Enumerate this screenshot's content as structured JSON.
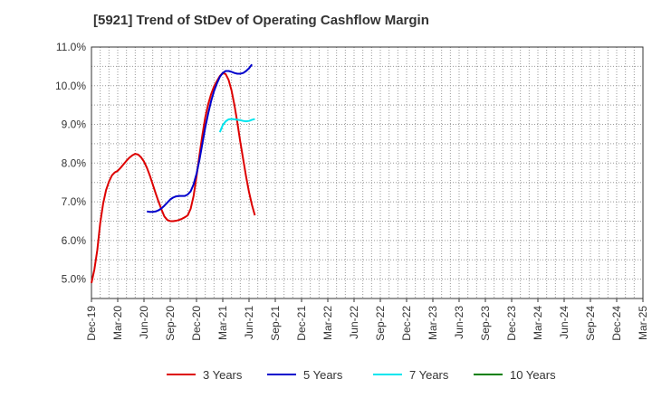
{
  "chart_data": {
    "type": "line",
    "title": "[5921]  Trend of StDev of Operating Cashflow Margin",
    "xlabel": "",
    "ylabel": "",
    "x_tick_labels": [
      "Dec-19",
      "Mar-20",
      "Jun-20",
      "Sep-20",
      "Dec-20",
      "Mar-21",
      "Jun-21",
      "Sep-21",
      "Dec-21",
      "Mar-22",
      "Jun-22",
      "Sep-22",
      "Dec-22",
      "Mar-23",
      "Jun-23",
      "Sep-23",
      "Dec-23",
      "Mar-24",
      "Jun-24",
      "Sep-24",
      "Dec-24",
      "Mar-25"
    ],
    "y_tick_labels": [
      "5.0%",
      "6.0%",
      "7.0%",
      "8.0%",
      "9.0%",
      "10.0%",
      "11.0%"
    ],
    "ylim": [
      4.5,
      11.0
    ],
    "grid": true,
    "legend_position": "bottom",
    "series": [
      {
        "name": "3 Years",
        "color": "#dd0000",
        "points": [
          [
            0,
            4.9
          ],
          [
            1,
            5.25
          ],
          [
            2,
            5.75
          ],
          [
            3,
            6.45
          ],
          [
            4,
            6.95
          ],
          [
            5,
            7.3
          ],
          [
            6,
            7.52
          ],
          [
            7,
            7.68
          ],
          [
            8,
            7.76
          ],
          [
            9,
            7.8
          ],
          [
            10,
            7.88
          ],
          [
            11,
            7.97
          ],
          [
            12,
            8.06
          ],
          [
            13,
            8.14
          ],
          [
            14,
            8.2
          ],
          [
            15,
            8.24
          ],
          [
            16,
            8.22
          ],
          [
            17,
            8.15
          ],
          [
            18,
            8.04
          ],
          [
            19,
            7.88
          ],
          [
            20,
            7.68
          ],
          [
            21,
            7.45
          ],
          [
            22,
            7.22
          ],
          [
            23,
            7.0
          ],
          [
            24,
            6.8
          ],
          [
            25,
            6.62
          ],
          [
            26,
            6.53
          ],
          [
            27,
            6.5
          ],
          [
            28,
            6.5
          ],
          [
            29,
            6.51
          ],
          [
            30,
            6.53
          ],
          [
            31,
            6.56
          ],
          [
            32,
            6.6
          ],
          [
            33,
            6.65
          ],
          [
            34,
            6.82
          ],
          [
            35,
            7.15
          ],
          [
            36,
            7.65
          ],
          [
            37,
            8.2
          ],
          [
            38,
            8.72
          ],
          [
            39,
            9.18
          ],
          [
            40,
            9.52
          ],
          [
            41,
            9.78
          ],
          [
            42,
            9.98
          ],
          [
            43,
            10.12
          ],
          [
            44,
            10.25
          ],
          [
            45,
            10.33
          ],
          [
            46,
            10.3
          ],
          [
            47,
            10.15
          ],
          [
            48,
            9.88
          ],
          [
            49,
            9.5
          ],
          [
            50,
            9.05
          ],
          [
            51,
            8.55
          ],
          [
            52,
            8.1
          ],
          [
            53,
            7.65
          ],
          [
            54,
            7.25
          ],
          [
            55,
            6.92
          ],
          [
            56,
            6.65
          ]
        ]
      },
      {
        "name": "5 Years",
        "color": "#0000cc",
        "points": [
          [
            19,
            6.75
          ],
          [
            20,
            6.74
          ],
          [
            21,
            6.74
          ],
          [
            22,
            6.75
          ],
          [
            23,
            6.78
          ],
          [
            24,
            6.83
          ],
          [
            25,
            6.9
          ],
          [
            26,
            6.98
          ],
          [
            27,
            7.06
          ],
          [
            28,
            7.11
          ],
          [
            29,
            7.14
          ],
          [
            30,
            7.15
          ],
          [
            31,
            7.15
          ],
          [
            32,
            7.15
          ],
          [
            33,
            7.19
          ],
          [
            34,
            7.27
          ],
          [
            35,
            7.45
          ],
          [
            36,
            7.72
          ],
          [
            37,
            8.08
          ],
          [
            38,
            8.5
          ],
          [
            39,
            8.92
          ],
          [
            40,
            9.28
          ],
          [
            41,
            9.6
          ],
          [
            42,
            9.86
          ],
          [
            43,
            10.06
          ],
          [
            44,
            10.23
          ],
          [
            45,
            10.33
          ],
          [
            46,
            10.38
          ],
          [
            47,
            10.38
          ],
          [
            48,
            10.36
          ],
          [
            49,
            10.33
          ],
          [
            50,
            10.31
          ],
          [
            51,
            10.31
          ],
          [
            52,
            10.33
          ],
          [
            53,
            10.38
          ],
          [
            54,
            10.45
          ],
          [
            55,
            10.55
          ]
        ]
      },
      {
        "name": "7 Years",
        "color": "#00e5ee",
        "points": [
          [
            44,
            8.8
          ],
          [
            45,
            8.98
          ],
          [
            46,
            9.08
          ],
          [
            47,
            9.13
          ],
          [
            48,
            9.14
          ],
          [
            49,
            9.13
          ],
          [
            50,
            9.12
          ],
          [
            51,
            9.11
          ],
          [
            52,
            9.09
          ],
          [
            53,
            9.08
          ],
          [
            54,
            9.09
          ],
          [
            55,
            9.12
          ],
          [
            56,
            9.14
          ]
        ]
      },
      {
        "name": "10 Years",
        "color": "#008000",
        "points": []
      }
    ]
  }
}
